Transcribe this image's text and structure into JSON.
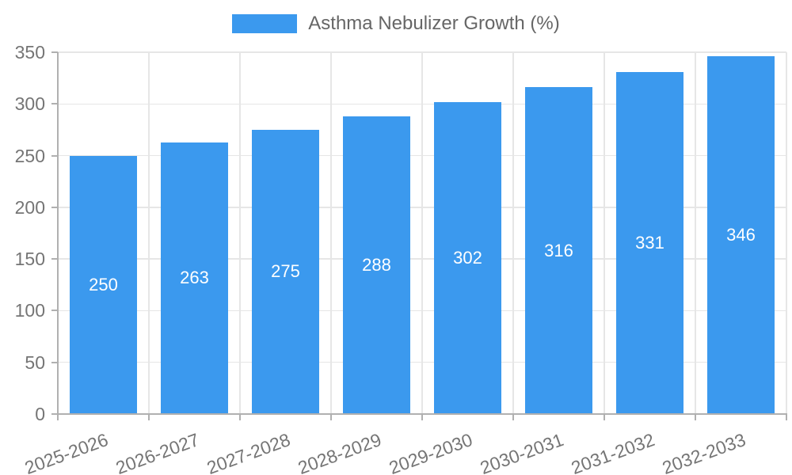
{
  "chart_data": {
    "type": "bar",
    "title": "Asthma Nebulizer Growth (%)",
    "legend": {
      "label": "Asthma Nebulizer Growth (%)",
      "position": "top-center"
    },
    "categories": [
      "2025-2026",
      "2026-2027",
      "2027-2028",
      "2028-2029",
      "2029-2030",
      "2030-2031",
      "2031-2032",
      "2032-2033"
    ],
    "values": [
      250,
      263,
      275,
      288,
      302,
      316,
      331,
      346
    ],
    "xlabel": "",
    "ylabel": "",
    "ylim": [
      0,
      350
    ],
    "yticks": [
      0,
      50,
      100,
      150,
      200,
      250,
      300,
      350
    ],
    "grid": true,
    "value_label_position": "inside-center",
    "x_tick_label_rotation_deg": -20,
    "colors": {
      "bar": "#3b99ee",
      "value_label": "#ffffff",
      "tick_label": "#757575",
      "legend_label": "#666666",
      "gridline": "#e6e6e6",
      "axis": "#b0b0b0",
      "background": "#ffffff"
    }
  }
}
